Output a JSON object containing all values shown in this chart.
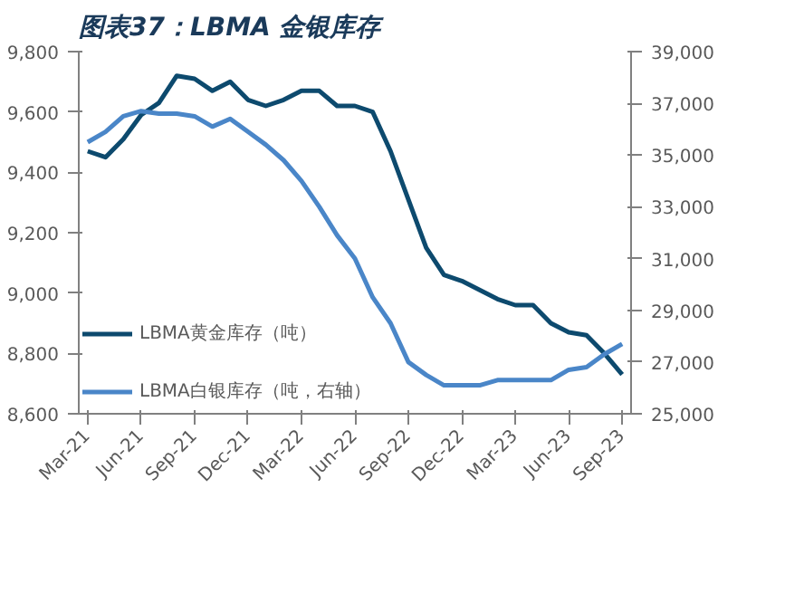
{
  "chart_data": {
    "type": "line",
    "title": "图表37：LBMA 金银库存",
    "categories": [
      "Mar-21",
      null,
      null,
      "Jun-21",
      null,
      null,
      "Sep-21",
      null,
      null,
      "Dec-21",
      null,
      null,
      "Mar-22",
      null,
      null,
      "Jun-22",
      null,
      null,
      "Sep-22",
      null,
      null,
      "Dec-22",
      null,
      null,
      "Mar-23",
      null,
      null,
      "Jun-23",
      null,
      null,
      "Sep-23"
    ],
    "series": [
      {
        "name": "LBMA黄金库存（吨）",
        "color": "#0d4a6e",
        "values": [
          9470,
          9450,
          9510,
          9590,
          9630,
          9720,
          9710,
          9670,
          9700,
          9640,
          9620,
          9640,
          9670,
          9670,
          9620,
          9620,
          9600,
          9470,
          9310,
          9150,
          9060,
          9040,
          9010,
          8980,
          8960,
          8960,
          8900,
          8870,
          8860,
          8800,
          8730
        ]
      },
      {
        "name": "LBMA白银库存（吨，右轴）",
        "color": "#4a86c8",
        "axis": "y2",
        "values": [
          35500,
          35900,
          36500,
          36700,
          36600,
          36600,
          36500,
          36100,
          36400,
          35900,
          35400,
          34800,
          34000,
          33000,
          31900,
          31000,
          29500,
          28500,
          27000,
          26500,
          26100,
          26100,
          26100,
          26300,
          26300,
          26300,
          26300,
          26700,
          26800,
          27300,
          27700
        ]
      }
    ],
    "ylim": [
      8600,
      9800
    ],
    "yticks": [
      {
        "value": 8600,
        "label": "8,600"
      },
      {
        "value": 8800,
        "label": "8,800"
      },
      {
        "value": 9000,
        "label": "9,000"
      },
      {
        "value": 9200,
        "label": "9,200"
      },
      {
        "value": 9400,
        "label": "9,400"
      },
      {
        "value": 9600,
        "label": "9,600"
      },
      {
        "value": 9800,
        "label": "9,800"
      }
    ],
    "y2lim": [
      25000,
      39000
    ],
    "y2ticks": [
      {
        "value": 25000,
        "label": "25,000"
      },
      {
        "value": 27000,
        "label": "27,000"
      },
      {
        "value": 29000,
        "label": "29,000"
      },
      {
        "value": 31000,
        "label": "31,000"
      },
      {
        "value": 33000,
        "label": "33,000"
      },
      {
        "value": 35000,
        "label": "35,000"
      },
      {
        "value": 37000,
        "label": "37,000"
      },
      {
        "value": 39000,
        "label": "39,000"
      }
    ],
    "grid": false,
    "legend": "bottom left",
    "marker": "none",
    "line_style": "solid"
  }
}
